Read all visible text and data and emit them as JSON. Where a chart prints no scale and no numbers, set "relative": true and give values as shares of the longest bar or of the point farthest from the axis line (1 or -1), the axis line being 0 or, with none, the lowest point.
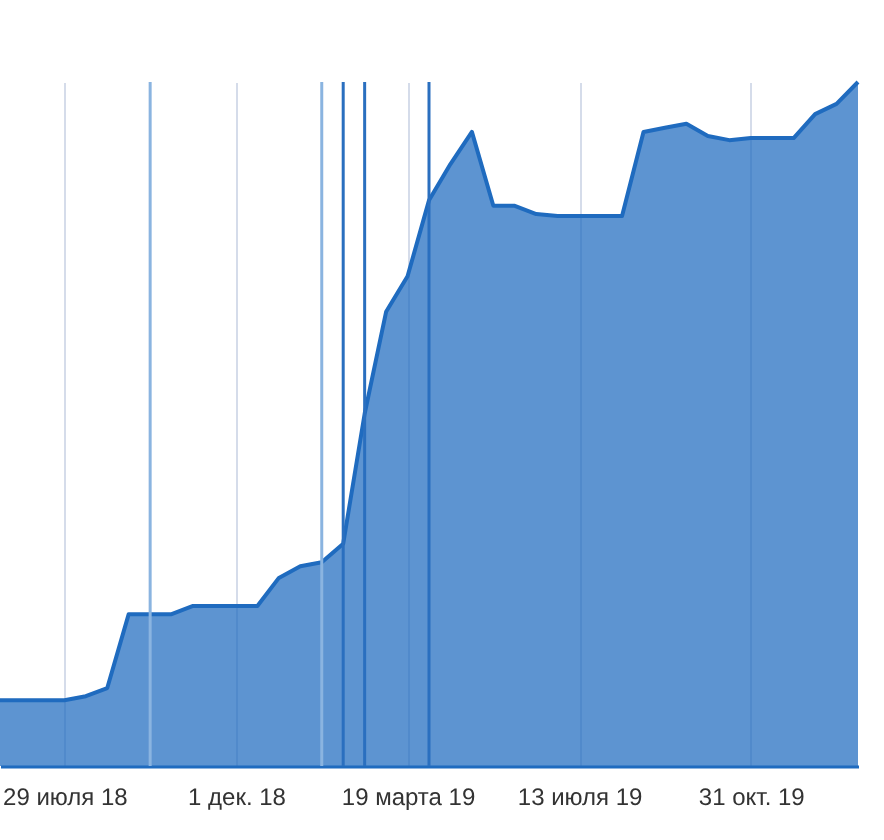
{
  "chart_data": {
    "type": "area",
    "relative": true,
    "grid": "x",
    "categories": [
      null,
      null,
      null,
      "29 июля 18",
      null,
      null,
      null,
      null,
      null,
      null,
      null,
      "1 дек. 18",
      null,
      null,
      null,
      null,
      null,
      null,
      null,
      "19 марта 19",
      null,
      null,
      null,
      null,
      null,
      null,
      null,
      "13 июля 19",
      null,
      null,
      null,
      null,
      null,
      null,
      null,
      "31 окт. 19",
      null,
      null,
      null,
      null,
      null
    ],
    "series": [
      {
        "color": "#1f6bbf",
        "values": [
          0.096,
          0.096,
          0.096,
          0.096,
          0.102,
          0.114,
          0.222,
          0.222,
          0.222,
          0.234,
          0.234,
          0.234,
          0.234,
          0.275,
          0.292,
          0.298,
          0.325,
          0.515,
          0.664,
          0.716,
          0.827,
          0.88,
          0.927,
          0.819,
          0.819,
          0.807,
          0.804,
          0.804,
          0.804,
          0.804,
          0.927,
          0.933,
          0.939,
          0.921,
          0.915,
          0.918,
          0.918,
          0.918,
          0.953,
          0.968,
          1
        ]
      }
    ]
  }
}
